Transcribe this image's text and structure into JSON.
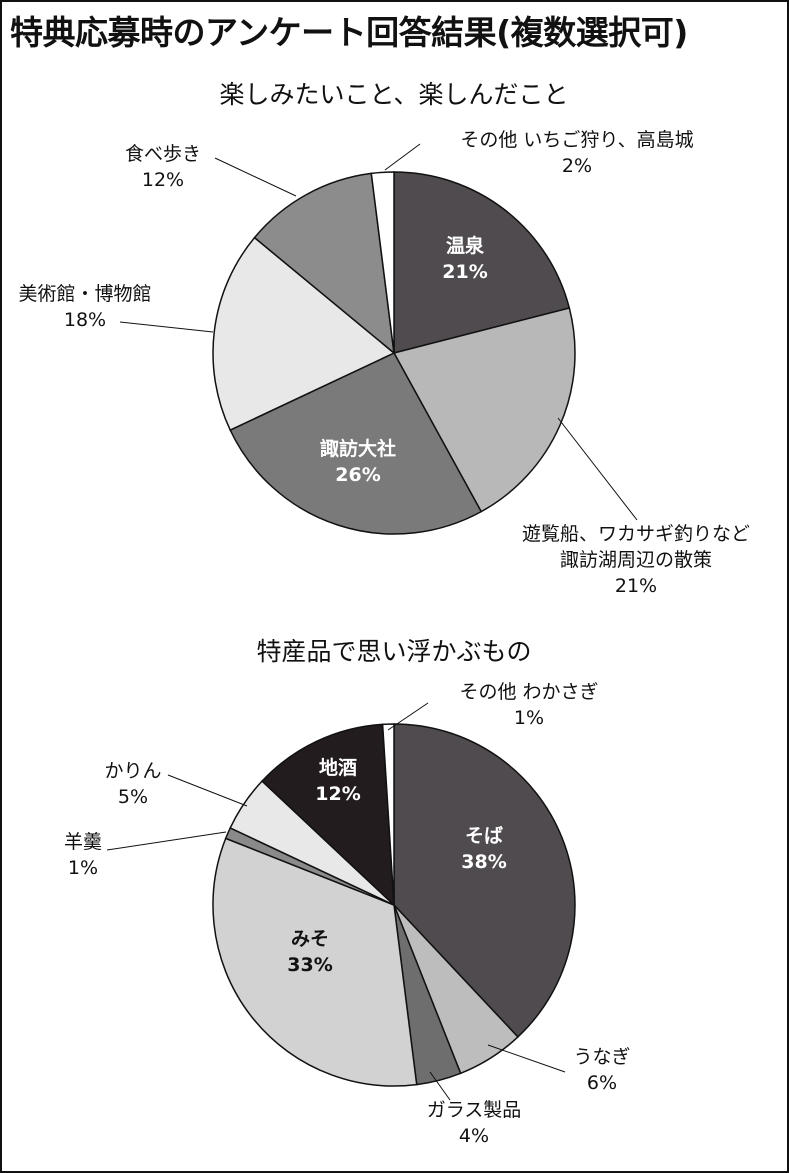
{
  "page": {
    "title": "特典応募時のアンケート回答結果(複数選択可)"
  },
  "chart_data": [
    {
      "type": "pie",
      "title": "楽しみたいこと、楽しんだこと",
      "slices": [
        {
          "label": [
            "温泉",
            "21%"
          ],
          "value": 21,
          "color": "#4f4b4e"
        },
        {
          "label": [
            "遊覧船、ワカサギ釣りなど",
            "諏訪湖周辺の散策",
            "21%"
          ],
          "value": 21,
          "color": "#b8b8b8"
        },
        {
          "label": [
            "諏訪大社",
            "26%"
          ],
          "value": 26,
          "color": "#7a7a7a"
        },
        {
          "label": [
            "美術館・博物館",
            "18%"
          ],
          "value": 18,
          "color": "#e8e8e8"
        },
        {
          "label": [
            "食べ歩き",
            "12%"
          ],
          "value": 12,
          "color": "#8c8c8c"
        },
        {
          "label": [
            "その他 いちご狩り、高島城",
            "2%"
          ],
          "value": 2,
          "color": "#ffffff"
        }
      ]
    },
    {
      "type": "pie",
      "title": "特産品で思い浮かぶもの",
      "slices": [
        {
          "label": [
            "そば",
            "38%"
          ],
          "value": 38,
          "color": "#4f4b4e"
        },
        {
          "label": [
            "うなぎ",
            "6%"
          ],
          "value": 6,
          "color": "#bdbdbd"
        },
        {
          "label": [
            "ガラス製品",
            "4%"
          ],
          "value": 4,
          "color": "#6e6e6e"
        },
        {
          "label": [
            "みそ",
            "33%"
          ],
          "value": 33,
          "color": "#d2d2d2"
        },
        {
          "label": [
            "羊羹",
            "1%"
          ],
          "value": 1,
          "color": "#8a8a8a"
        },
        {
          "label": [
            "かりん",
            "5%"
          ],
          "value": 5,
          "color": "#e8e8e8"
        },
        {
          "label": [
            "地酒",
            "12%"
          ],
          "value": 12,
          "color": "#221c1f"
        },
        {
          "label": [
            "その他 わかさぎ",
            "1%"
          ],
          "value": 1,
          "color": "#ffffff"
        }
      ]
    }
  ]
}
